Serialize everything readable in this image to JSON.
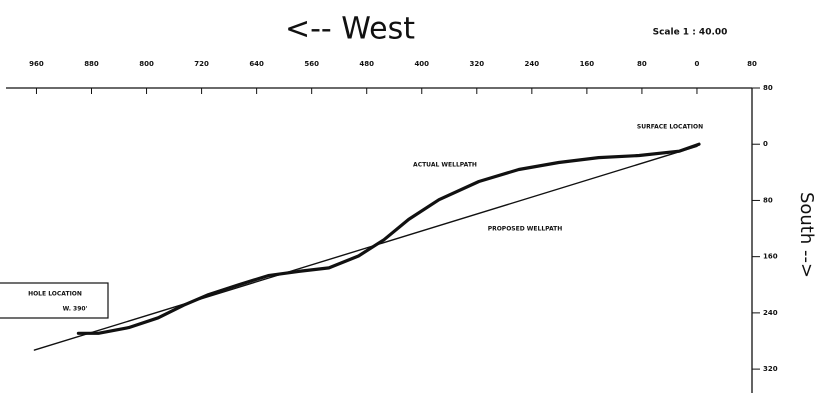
{
  "chart_data": {
    "type": "line",
    "title": "<-- West",
    "subtitle": "Scale 1 : 40.00",
    "y_label": "South -->",
    "annotations": [
      "SURFACE LOCATION",
      "ACTUAL WELLPATH",
      "PROPOSED WELLPATH",
      "HOLE LOCATION",
      "W. 390'"
    ],
    "xlim": [
      1013,
      -80
    ],
    "xticks": [
      960,
      880,
      800,
      720,
      640,
      560,
      480,
      400,
      320,
      240,
      160,
      80,
      0,
      {
        "value": -80,
        "label": "80"
      }
    ],
    "ylim": [
      -80,
      354
    ],
    "yticks": [
      {
        "value": -80,
        "label": "80"
      },
      0,
      80,
      160,
      240,
      320
    ],
    "series": [
      {
        "name": "ACTUAL WELLPATH",
        "color": "#111111",
        "width": 3.2,
        "x": [
          -3,
          26,
          84,
          143,
          201,
          259,
          317,
          375,
          419,
          455,
          492,
          535,
          579,
          623,
          666,
          710,
          746,
          783,
          826,
          870,
          899
        ],
        "values": [
          0,
          10,
          16,
          19,
          26,
          36,
          53,
          79,
          107,
          136,
          159,
          176,
          181,
          187,
          200,
          214,
          229,
          247,
          261,
          269,
          269
        ]
      },
      {
        "name": "PROPOSED WELLPATH",
        "color": "#111111",
        "width": 1.4,
        "x": [
          0,
          963
        ],
        "values": [
          3,
          293
        ]
      }
    ]
  }
}
